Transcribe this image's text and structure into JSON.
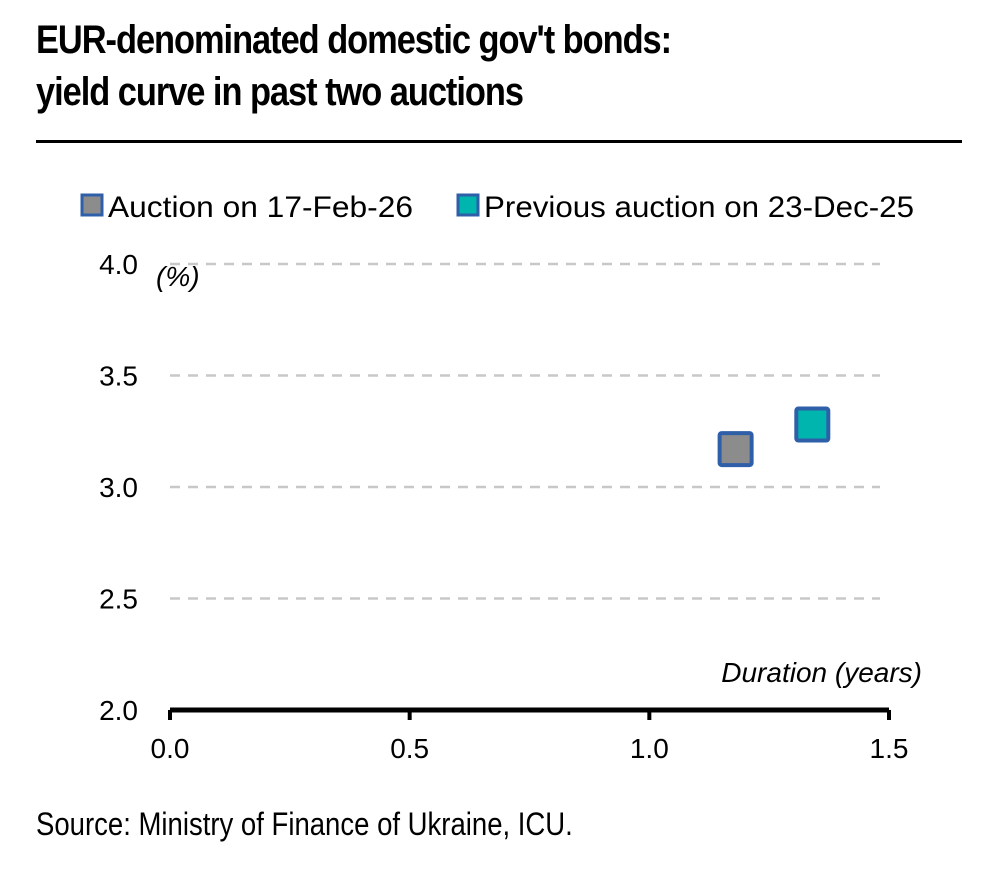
{
  "chart_data": {
    "type": "scatter",
    "title": "EUR-denominated domestic gov't bonds: yield curve in past two auctions",
    "title_lines": [
      "EUR-denominated domestic gov't bonds:",
      "yield curve in past two auctions"
    ],
    "xlabel": "Duration (years)",
    "ylabel": "(%)",
    "xlim": [
      0.0,
      1.5
    ],
    "ylim": [
      2.0,
      4.0
    ],
    "x_ticks": [
      "0.0",
      "0.5",
      "1.0",
      "1.5"
    ],
    "x_tick_values": [
      0.0,
      0.5,
      1.0,
      1.5
    ],
    "y_ticks": [
      "2.0",
      "2.5",
      "3.0",
      "3.5",
      "4.0"
    ],
    "y_tick_values": [
      2.0,
      2.5,
      3.0,
      3.5,
      4.0
    ],
    "grid": "horizontal dashed",
    "legend_position": "top",
    "series": [
      {
        "name": "Auction on 17-Feb-26",
        "color": "#8c8c8c",
        "edge_color": "#2e5fa8",
        "marker": "square",
        "points": [
          {
            "x": 1.18,
            "y": 3.17
          }
        ]
      },
      {
        "name": "Previous auction on 23-Dec-25",
        "color": "#00b5ad",
        "edge_color": "#2e5fa8",
        "marker": "square",
        "points": [
          {
            "x": 1.34,
            "y": 3.28
          }
        ]
      }
    ],
    "source": "Source: Ministry of Finance of Ukraine, ICU."
  }
}
